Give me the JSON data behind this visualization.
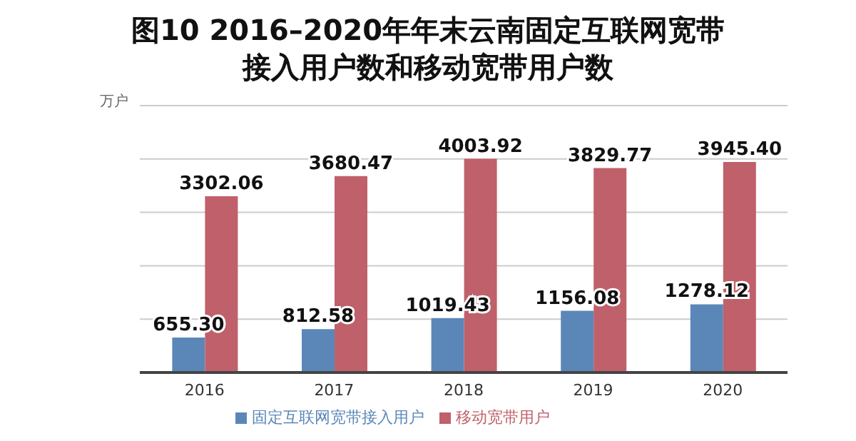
{
  "chart_data": {
    "type": "bar",
    "title": "图10  2016–2020年年末云南固定互联网宽带接入用户数和移动宽带用户数",
    "ylabel": "万户",
    "categories": [
      "2016",
      "2017",
      "2018",
      "2019",
      "2020"
    ],
    "series": [
      {
        "name": "固定互联网宽带接入用户",
        "color": "#5b87b8",
        "values": [
          655.3,
          812.58,
          1019.43,
          1156.08,
          1278.12
        ],
        "value_labels": [
          "655.30",
          "812.58",
          "1019.43",
          "1156.08",
          "1278.12"
        ]
      },
      {
        "name": "移动宽带用户",
        "color": "#c0606a",
        "values": [
          3302.06,
          3680.47,
          4003.92,
          3829.77,
          3945.4
        ],
        "value_labels": [
          "3302.06",
          "3680.47",
          "4003.92",
          "3829.77",
          "3945.40"
        ]
      }
    ],
    "ylim": [
      0,
      5000
    ],
    "yticks": [
      {
        "value": 0,
        "label": null
      },
      {
        "value": 1000,
        "label": null
      },
      {
        "value": 2000,
        "label": null
      },
      {
        "value": 3000,
        "label": null
      },
      {
        "value": 4000,
        "label": null
      },
      {
        "value": 5000,
        "label": null
      }
    ],
    "tick_labels": "x",
    "grid": "y",
    "legend": "bottom"
  }
}
